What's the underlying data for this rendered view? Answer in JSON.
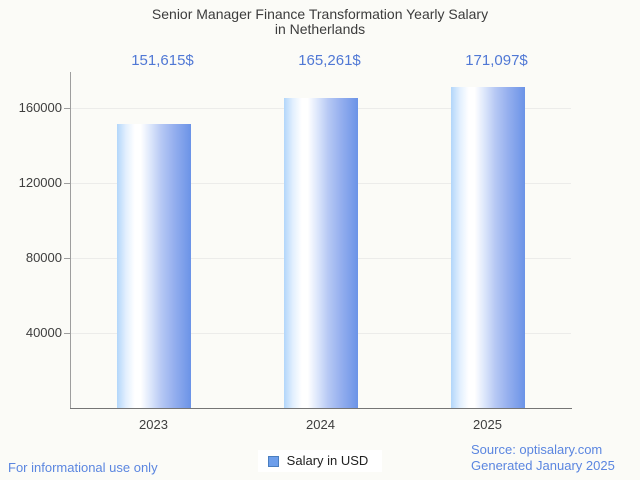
{
  "title": {
    "line1": "Senior Manager Finance Transformation Yearly Salary",
    "line2": "in Netherlands"
  },
  "chart_data": {
    "type": "bar",
    "title": "Senior Manager Finance Transformation Yearly Salary in Netherlands",
    "categories": [
      "2023",
      "2024",
      "2025"
    ],
    "series": [
      {
        "name": "Salary in USD",
        "values": [
          151615,
          165261,
          171097
        ]
      }
    ],
    "value_labels": [
      "151,615$",
      "165,261$",
      "171,097$"
    ],
    "xlabel": "",
    "ylabel": "",
    "ylim": [
      0,
      179200
    ],
    "yticks": [
      40000,
      80000,
      120000,
      160000
    ],
    "ytick_labels": [
      "40000",
      "80000",
      "120000",
      "160000"
    ],
    "grid": true,
    "legend_position": "bottom",
    "bar_gradient": [
      "#b2d6fa",
      "#ffffff",
      "#6b93e7"
    ]
  },
  "legend": {
    "label": "Salary in USD",
    "swatch_color": "#6d9eeb"
  },
  "footer": {
    "left": "For informational use only",
    "source": "Source: optisalary.com",
    "generated": "Generated January 2025"
  },
  "colors": {
    "background": "#fbfbf7",
    "title_text": "#3c3c3c",
    "axis_text": "#3e3e3e",
    "annotation_blue": "#5078d5",
    "footer_blue": "#5b86e0",
    "gridline": "#ececea",
    "axis_line": "#757575"
  }
}
